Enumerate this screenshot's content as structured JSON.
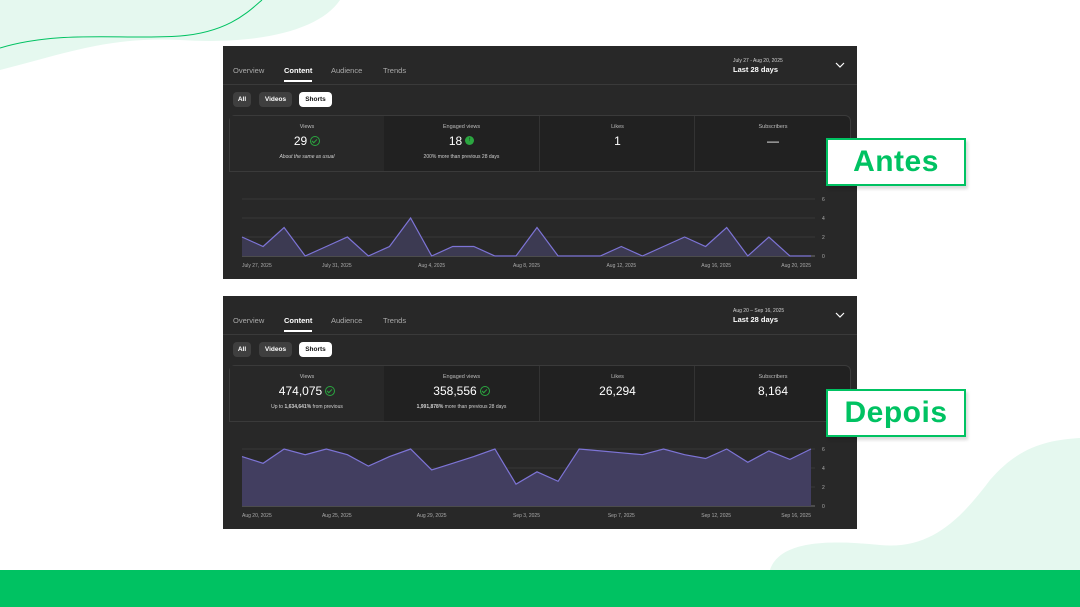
{
  "theme": {
    "brand_green": "#00c262",
    "panel_bg": "#282828",
    "line_color": "#7d74d6",
    "area_fill": "#423e60"
  },
  "panels": [
    {
      "tabs": [
        "Overview",
        "Content",
        "Audience",
        "Trends"
      ],
      "active_tab": "Content",
      "date_range": "July 27 - Aug 20, 2025",
      "date_label": "Last 28 days",
      "filters": [
        "All",
        "Videos",
        "Shorts"
      ],
      "selected_filter": "Shorts",
      "metrics": [
        {
          "label": "Views",
          "value": "29",
          "icon": "check-circle-icon",
          "sub": "About the same as usual",
          "sub_bold": ""
        },
        {
          "label": "Engaged views",
          "value": "18",
          "icon": "arrow-up-circle-icon",
          "sub": "200% more than previous 28 days",
          "sub_bold": ""
        },
        {
          "label": "Likes",
          "value": "1",
          "sub": "",
          "sub_bold": ""
        },
        {
          "label": "Subscribers",
          "value": "—",
          "sub": "",
          "sub_bold": ""
        }
      ],
      "badge": "Antes",
      "chart_data": {
        "type": "area",
        "y_ticks": [
          "6",
          "4",
          "2",
          "0"
        ],
        "ylim": [
          0,
          6
        ],
        "x_labels": [
          "July 27, 2025",
          "July 31, 2025",
          "Aug 4, 2025",
          "Aug 8, 2025",
          "Aug 12, 2025",
          "Aug 16, 2025",
          "Aug 20, 2025"
        ],
        "values": [
          2,
          1,
          3,
          0,
          1,
          2,
          0,
          1,
          4,
          0,
          1,
          1,
          0,
          0,
          3,
          0,
          0,
          0,
          1,
          0,
          1,
          2,
          1,
          3,
          0,
          2,
          0,
          0
        ],
        "fill_area": false
      }
    },
    {
      "tabs": [
        "Overview",
        "Content",
        "Audience",
        "Trends"
      ],
      "active_tab": "Content",
      "date_range": "Aug 20 – Sep 16, 2025",
      "date_label": "Last 28 days",
      "filters": [
        "All",
        "Videos",
        "Shorts"
      ],
      "selected_filter": "Shorts",
      "metrics": [
        {
          "label": "Views",
          "value": "474,075",
          "icon": "check-circle-icon",
          "sub": " from previous",
          "sub_bold": "1,634,641%",
          "sub_prefix": "Up to "
        },
        {
          "label": "Engaged views",
          "value": "358,556",
          "icon": "check-circle-icon",
          "sub": " more than previous 28 days",
          "sub_bold": "1,991,878%",
          "sub_prefix": ""
        },
        {
          "label": "Likes",
          "value": "26,294",
          "sub": "",
          "sub_bold": ""
        },
        {
          "label": "Subscribers",
          "value": "8,164",
          "sub": "",
          "sub_bold": ""
        }
      ],
      "badge": "Depois",
      "chart_data": {
        "type": "area",
        "y_ticks": [
          "6",
          "4",
          "2",
          "0"
        ],
        "ylim": [
          0,
          6
        ],
        "x_labels": [
          "Aug 20, 2025",
          "Aug 25, 2025",
          "Aug 29, 2025",
          "Sep 3, 2025",
          "Sep 7, 2025",
          "Sep 12, 2025",
          "Sep 16, 2025"
        ],
        "values": [
          5.2,
          4.5,
          6,
          5.4,
          6,
          5.4,
          4.2,
          5.2,
          6,
          3.8,
          4.5,
          5.2,
          6,
          2.3,
          3.6,
          2.6,
          6,
          5.8,
          5.6,
          5.4,
          6,
          5.4,
          5,
          6,
          4.6,
          5.8,
          4.9,
          6
        ],
        "fill_area": true
      }
    }
  ]
}
